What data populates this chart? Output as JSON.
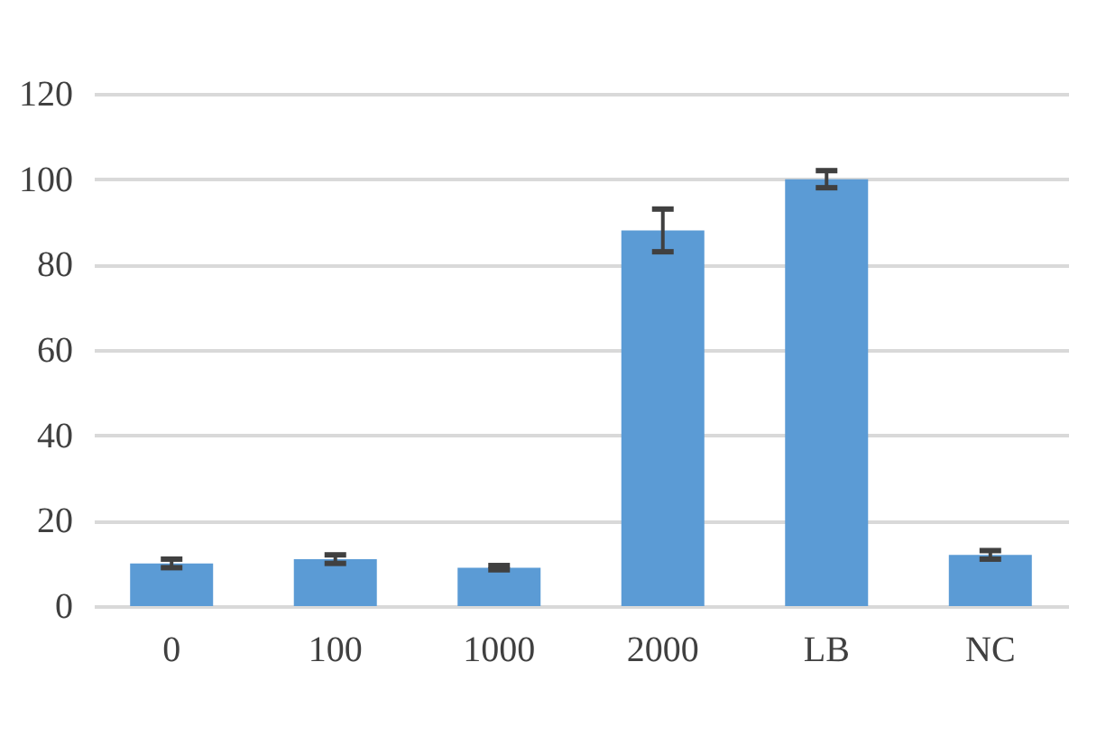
{
  "chart_data": {
    "type": "bar",
    "categories": [
      "0",
      "100",
      "1000",
      "2000",
      "LB",
      "NC"
    ],
    "values": [
      10,
      11,
      9,
      88,
      100,
      12
    ],
    "errors": [
      1,
      1,
      0.5,
      5,
      2,
      1
    ],
    "color": "#5b9bd5",
    "ylim": [
      0,
      120
    ],
    "yticks": [
      0,
      20,
      40,
      60,
      80,
      100,
      120
    ],
    "grid": "y"
  }
}
